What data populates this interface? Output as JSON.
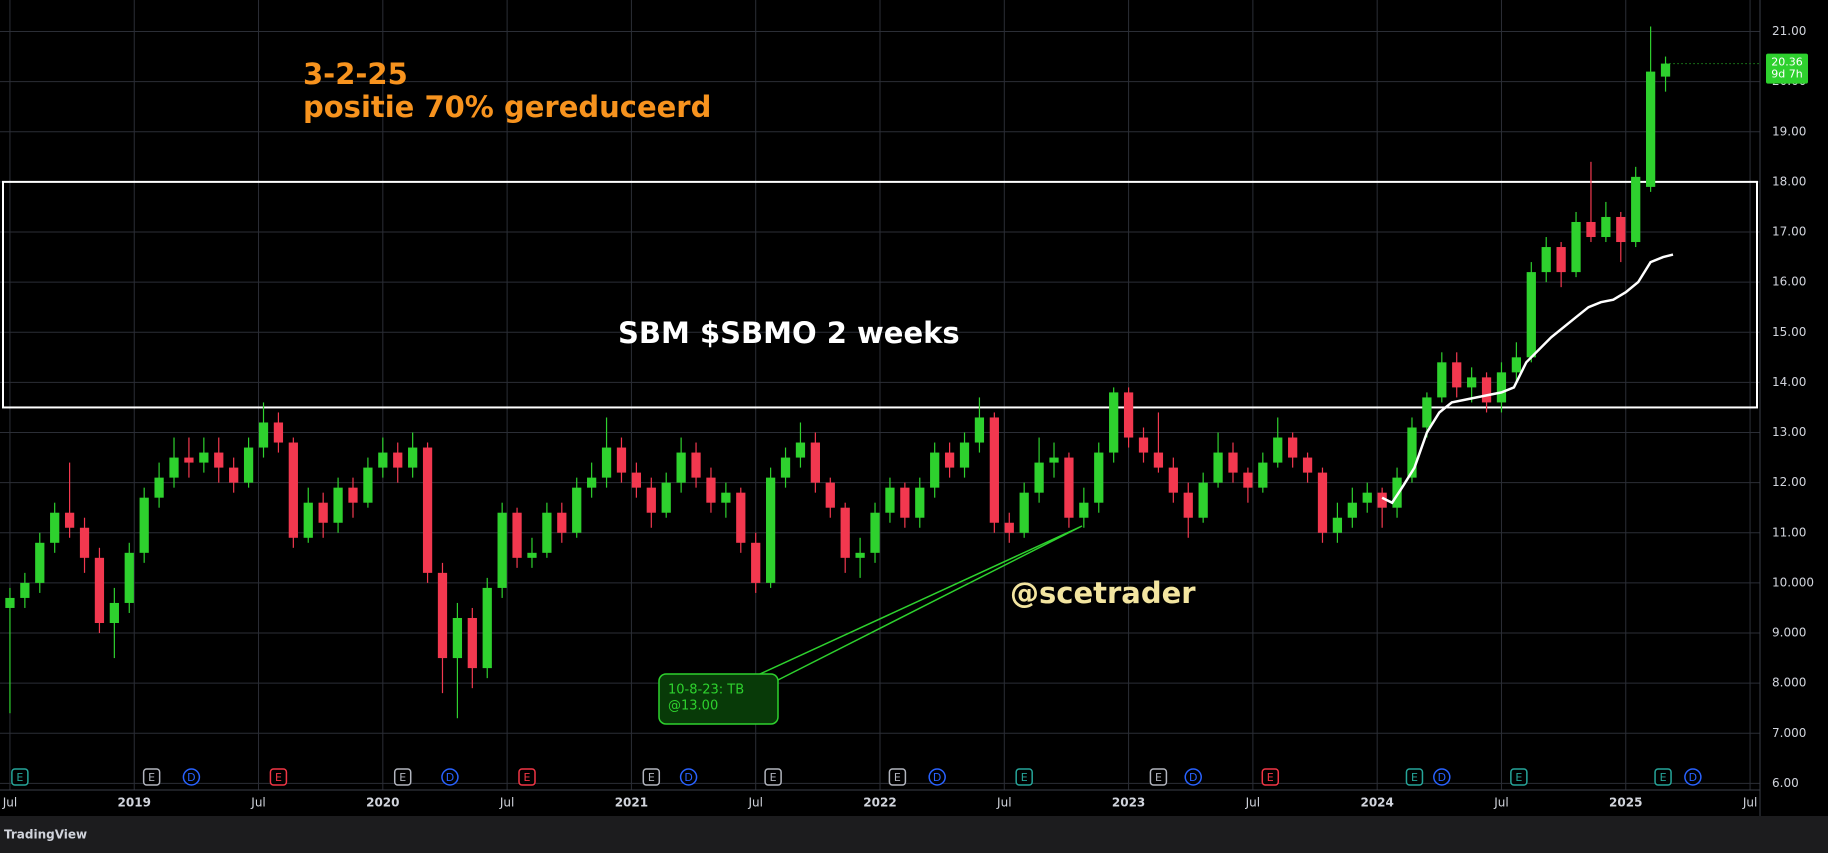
{
  "chart_data": {
    "type": "candlestick",
    "title": "SBM $SBMO 2 weeks",
    "annotations": [
      "3-2-25",
      "positie 70% gereduceerd",
      "@scetrader"
    ],
    "callout": [
      "10-8-23: TB",
      "@13.00"
    ],
    "countdown": "9d 7h",
    "footer": "TradingView",
    "up_color": "#2ed12e",
    "down_color": "#f2384f",
    "grid": true,
    "xlim": [
      2018.46,
      2025.54
    ],
    "xticks": [
      {
        "value": 2018.5,
        "label": "Jul"
      },
      2019,
      {
        "value": 2019.5,
        "label": "Jul"
      },
      2020,
      {
        "value": 2020.5,
        "label": "Jul"
      },
      2021,
      {
        "value": 2021.5,
        "label": "Jul"
      },
      2022,
      {
        "value": 2022.5,
        "label": "Jul"
      },
      2023,
      {
        "value": 2023.5,
        "label": "Jul"
      },
      2024,
      {
        "value": 2024.5,
        "label": "Jul"
      },
      2025,
      {
        "value": 2025.5,
        "label": "Jul"
      }
    ],
    "ylim": [
      6,
      21
    ],
    "yticks": [
      {
        "value": 6,
        "label": "6.00"
      },
      {
        "value": 7,
        "label": "7.000"
      },
      {
        "value": 8,
        "label": "8.000"
      },
      {
        "value": 9,
        "label": "9.000"
      },
      {
        "value": 10,
        "label": "10.000"
      },
      {
        "value": 11,
        "label": "11.00"
      },
      {
        "value": 12,
        "label": "12.00"
      },
      {
        "value": 13,
        "label": "13.00"
      },
      {
        "value": 14,
        "label": "14.00"
      },
      {
        "value": 15,
        "label": "15.00"
      },
      {
        "value": 16,
        "label": "16.00"
      },
      {
        "value": 17,
        "label": "17.00"
      },
      {
        "value": 18,
        "label": "18.00"
      },
      {
        "value": 19,
        "label": "19.00"
      },
      {
        "value": 20,
        "label": "20.00"
      },
      {
        "value": 21,
        "label": "21.00"
      }
    ],
    "zone": {
      "top": 18,
      "bottom": 13.5,
      "color": "#ffffff"
    },
    "candles": [
      {
        "x": 2018.5,
        "o": 9.5,
        "h": 9.9,
        "l": 7.4,
        "c": 9.7
      },
      {
        "x": 2018.56,
        "o": 9.7,
        "h": 10.2,
        "l": 9.5,
        "c": 10.0
      },
      {
        "x": 2018.62,
        "o": 10.0,
        "h": 11.0,
        "l": 9.8,
        "c": 10.8
      },
      {
        "x": 2018.68,
        "o": 10.8,
        "h": 11.6,
        "l": 10.6,
        "c": 11.4
      },
      {
        "x": 2018.74,
        "o": 11.4,
        "h": 12.4,
        "l": 10.9,
        "c": 11.1
      },
      {
        "x": 2018.8,
        "o": 11.1,
        "h": 11.3,
        "l": 10.2,
        "c": 10.5
      },
      {
        "x": 2018.86,
        "o": 10.5,
        "h": 10.7,
        "l": 9.0,
        "c": 9.2
      },
      {
        "x": 2018.92,
        "o": 9.2,
        "h": 9.9,
        "l": 8.5,
        "c": 9.6
      },
      {
        "x": 2018.98,
        "o": 9.6,
        "h": 10.8,
        "l": 9.4,
        "c": 10.6
      },
      {
        "x": 2019.04,
        "o": 10.6,
        "h": 11.9,
        "l": 10.4,
        "c": 11.7
      },
      {
        "x": 2019.1,
        "o": 11.7,
        "h": 12.4,
        "l": 11.5,
        "c": 12.1
      },
      {
        "x": 2019.16,
        "o": 12.1,
        "h": 12.9,
        "l": 11.9,
        "c": 12.5
      },
      {
        "x": 2019.22,
        "o": 12.5,
        "h": 12.9,
        "l": 12.1,
        "c": 12.4
      },
      {
        "x": 2019.28,
        "o": 12.4,
        "h": 12.9,
        "l": 12.2,
        "c": 12.6
      },
      {
        "x": 2019.34,
        "o": 12.6,
        "h": 12.9,
        "l": 12.0,
        "c": 12.3
      },
      {
        "x": 2019.4,
        "o": 12.3,
        "h": 12.5,
        "l": 11.8,
        "c": 12.0
      },
      {
        "x": 2019.46,
        "o": 12.0,
        "h": 12.9,
        "l": 11.9,
        "c": 12.7
      },
      {
        "x": 2019.52,
        "o": 12.7,
        "h": 13.6,
        "l": 12.5,
        "c": 13.2
      },
      {
        "x": 2019.58,
        "o": 13.2,
        "h": 13.4,
        "l": 12.6,
        "c": 12.8
      },
      {
        "x": 2019.64,
        "o": 12.8,
        "h": 12.9,
        "l": 10.7,
        "c": 10.9
      },
      {
        "x": 2019.7,
        "o": 10.9,
        "h": 11.9,
        "l": 10.8,
        "c": 11.6
      },
      {
        "x": 2019.76,
        "o": 11.6,
        "h": 11.8,
        "l": 10.9,
        "c": 11.2
      },
      {
        "x": 2019.82,
        "o": 11.2,
        "h": 12.1,
        "l": 11.0,
        "c": 11.9
      },
      {
        "x": 2019.88,
        "o": 11.9,
        "h": 12.1,
        "l": 11.3,
        "c": 11.6
      },
      {
        "x": 2019.94,
        "o": 11.6,
        "h": 12.5,
        "l": 11.5,
        "c": 12.3
      },
      {
        "x": 2020.0,
        "o": 12.3,
        "h": 12.9,
        "l": 12.1,
        "c": 12.6
      },
      {
        "x": 2020.06,
        "o": 12.6,
        "h": 12.8,
        "l": 12.0,
        "c": 12.3
      },
      {
        "x": 2020.12,
        "o": 12.3,
        "h": 13.0,
        "l": 12.1,
        "c": 12.7
      },
      {
        "x": 2020.18,
        "o": 12.7,
        "h": 12.8,
        "l": 10.0,
        "c": 10.2
      },
      {
        "x": 2020.24,
        "o": 10.2,
        "h": 10.4,
        "l": 7.8,
        "c": 8.5
      },
      {
        "x": 2020.3,
        "o": 8.5,
        "h": 9.6,
        "l": 7.3,
        "c": 9.3
      },
      {
        "x": 2020.36,
        "o": 9.3,
        "h": 9.5,
        "l": 7.9,
        "c": 8.3
      },
      {
        "x": 2020.42,
        "o": 8.3,
        "h": 10.1,
        "l": 8.1,
        "c": 9.9
      },
      {
        "x": 2020.48,
        "o": 9.9,
        "h": 11.6,
        "l": 9.7,
        "c": 11.4
      },
      {
        "x": 2020.54,
        "o": 11.4,
        "h": 11.5,
        "l": 10.3,
        "c": 10.5
      },
      {
        "x": 2020.6,
        "o": 10.5,
        "h": 10.9,
        "l": 10.3,
        "c": 10.6
      },
      {
        "x": 2020.66,
        "o": 10.6,
        "h": 11.6,
        "l": 10.5,
        "c": 11.4
      },
      {
        "x": 2020.72,
        "o": 11.4,
        "h": 11.6,
        "l": 10.8,
        "c": 11.0
      },
      {
        "x": 2020.78,
        "o": 11.0,
        "h": 12.1,
        "l": 10.9,
        "c": 11.9
      },
      {
        "x": 2020.84,
        "o": 11.9,
        "h": 12.4,
        "l": 11.7,
        "c": 12.1
      },
      {
        "x": 2020.9,
        "o": 12.1,
        "h": 13.3,
        "l": 11.9,
        "c": 12.7
      },
      {
        "x": 2020.96,
        "o": 12.7,
        "h": 12.9,
        "l": 12.0,
        "c": 12.2
      },
      {
        "x": 2021.02,
        "o": 12.2,
        "h": 12.4,
        "l": 11.7,
        "c": 11.9
      },
      {
        "x": 2021.08,
        "o": 11.9,
        "h": 12.1,
        "l": 11.1,
        "c": 11.4
      },
      {
        "x": 2021.14,
        "o": 11.4,
        "h": 12.2,
        "l": 11.3,
        "c": 12.0
      },
      {
        "x": 2021.2,
        "o": 12.0,
        "h": 12.9,
        "l": 11.8,
        "c": 12.6
      },
      {
        "x": 2021.26,
        "o": 12.6,
        "h": 12.8,
        "l": 11.9,
        "c": 12.1
      },
      {
        "x": 2021.32,
        "o": 12.1,
        "h": 12.3,
        "l": 11.4,
        "c": 11.6
      },
      {
        "x": 2021.38,
        "o": 11.6,
        "h": 12.0,
        "l": 11.3,
        "c": 11.8
      },
      {
        "x": 2021.44,
        "o": 11.8,
        "h": 11.9,
        "l": 10.6,
        "c": 10.8
      },
      {
        "x": 2021.5,
        "o": 10.8,
        "h": 11.0,
        "l": 9.8,
        "c": 10.0
      },
      {
        "x": 2021.56,
        "o": 10.0,
        "h": 12.3,
        "l": 9.9,
        "c": 12.1
      },
      {
        "x": 2021.62,
        "o": 12.1,
        "h": 12.7,
        "l": 11.9,
        "c": 12.5
      },
      {
        "x": 2021.68,
        "o": 12.5,
        "h": 13.2,
        "l": 12.3,
        "c": 12.8
      },
      {
        "x": 2021.74,
        "o": 12.8,
        "h": 13.0,
        "l": 11.8,
        "c": 12.0
      },
      {
        "x": 2021.8,
        "o": 12.0,
        "h": 12.1,
        "l": 11.3,
        "c": 11.5
      },
      {
        "x": 2021.86,
        "o": 11.5,
        "h": 11.6,
        "l": 10.2,
        "c": 10.5
      },
      {
        "x": 2021.92,
        "o": 10.5,
        "h": 10.9,
        "l": 10.1,
        "c": 10.6
      },
      {
        "x": 2021.98,
        "o": 10.6,
        "h": 11.6,
        "l": 10.4,
        "c": 11.4
      },
      {
        "x": 2022.04,
        "o": 11.4,
        "h": 12.1,
        "l": 11.2,
        "c": 11.9
      },
      {
        "x": 2022.1,
        "o": 11.9,
        "h": 12.0,
        "l": 11.1,
        "c": 11.3
      },
      {
        "x": 2022.16,
        "o": 11.3,
        "h": 12.1,
        "l": 11.1,
        "c": 11.9
      },
      {
        "x": 2022.22,
        "o": 11.9,
        "h": 12.8,
        "l": 11.7,
        "c": 12.6
      },
      {
        "x": 2022.28,
        "o": 12.6,
        "h": 12.8,
        "l": 12.1,
        "c": 12.3
      },
      {
        "x": 2022.34,
        "o": 12.3,
        "h": 13.0,
        "l": 12.1,
        "c": 12.8
      },
      {
        "x": 2022.4,
        "o": 12.8,
        "h": 13.7,
        "l": 12.6,
        "c": 13.3
      },
      {
        "x": 2022.46,
        "o": 13.3,
        "h": 13.4,
        "l": 11.0,
        "c": 11.2
      },
      {
        "x": 2022.52,
        "o": 11.2,
        "h": 11.4,
        "l": 10.8,
        "c": 11.0
      },
      {
        "x": 2022.58,
        "o": 11.0,
        "h": 12.0,
        "l": 10.9,
        "c": 11.8
      },
      {
        "x": 2022.64,
        "o": 11.8,
        "h": 12.9,
        "l": 11.6,
        "c": 12.4
      },
      {
        "x": 2022.7,
        "o": 12.4,
        "h": 12.8,
        "l": 12.1,
        "c": 12.5
      },
      {
        "x": 2022.76,
        "o": 12.5,
        "h": 12.6,
        "l": 11.1,
        "c": 11.3
      },
      {
        "x": 2022.82,
        "o": 11.3,
        "h": 11.9,
        "l": 11.1,
        "c": 11.6
      },
      {
        "x": 2022.88,
        "o": 11.6,
        "h": 12.8,
        "l": 11.4,
        "c": 12.6
      },
      {
        "x": 2022.94,
        "o": 12.6,
        "h": 13.9,
        "l": 12.4,
        "c": 13.8
      },
      {
        "x": 2023.0,
        "o": 13.8,
        "h": 13.9,
        "l": 12.7,
        "c": 12.9
      },
      {
        "x": 2023.06,
        "o": 12.9,
        "h": 13.1,
        "l": 12.4,
        "c": 12.6
      },
      {
        "x": 2023.12,
        "o": 12.6,
        "h": 13.4,
        "l": 12.2,
        "c": 12.3
      },
      {
        "x": 2023.18,
        "o": 12.3,
        "h": 12.5,
        "l": 11.6,
        "c": 11.8
      },
      {
        "x": 2023.24,
        "o": 11.8,
        "h": 12.0,
        "l": 10.9,
        "c": 11.3
      },
      {
        "x": 2023.3,
        "o": 11.3,
        "h": 12.2,
        "l": 11.2,
        "c": 12.0
      },
      {
        "x": 2023.36,
        "o": 12.0,
        "h": 13.0,
        "l": 11.9,
        "c": 12.6
      },
      {
        "x": 2023.42,
        "o": 12.6,
        "h": 12.8,
        "l": 12.0,
        "c": 12.2
      },
      {
        "x": 2023.48,
        "o": 12.2,
        "h": 12.3,
        "l": 11.6,
        "c": 11.9
      },
      {
        "x": 2023.54,
        "o": 11.9,
        "h": 12.6,
        "l": 11.8,
        "c": 12.4
      },
      {
        "x": 2023.6,
        "o": 12.4,
        "h": 13.3,
        "l": 12.3,
        "c": 12.9
      },
      {
        "x": 2023.66,
        "o": 12.9,
        "h": 13.0,
        "l": 12.3,
        "c": 12.5
      },
      {
        "x": 2023.72,
        "o": 12.5,
        "h": 12.6,
        "l": 12.0,
        "c": 12.2
      },
      {
        "x": 2023.78,
        "o": 12.2,
        "h": 12.3,
        "l": 10.8,
        "c": 11.0
      },
      {
        "x": 2023.84,
        "o": 11.0,
        "h": 11.6,
        "l": 10.8,
        "c": 11.3
      },
      {
        "x": 2023.9,
        "o": 11.3,
        "h": 11.9,
        "l": 11.1,
        "c": 11.6
      },
      {
        "x": 2023.96,
        "o": 11.6,
        "h": 12.0,
        "l": 11.4,
        "c": 11.8
      },
      {
        "x": 2024.02,
        "o": 11.8,
        "h": 11.9,
        "l": 11.1,
        "c": 11.5
      },
      {
        "x": 2024.08,
        "o": 11.5,
        "h": 12.3,
        "l": 11.3,
        "c": 12.1
      },
      {
        "x": 2024.14,
        "o": 12.1,
        "h": 13.3,
        "l": 12.0,
        "c": 13.1
      },
      {
        "x": 2024.2,
        "o": 13.1,
        "h": 13.8,
        "l": 12.9,
        "c": 13.7
      },
      {
        "x": 2024.26,
        "o": 13.7,
        "h": 14.6,
        "l": 13.6,
        "c": 14.4
      },
      {
        "x": 2024.32,
        "o": 14.4,
        "h": 14.6,
        "l": 13.7,
        "c": 13.9
      },
      {
        "x": 2024.38,
        "o": 13.9,
        "h": 14.3,
        "l": 13.6,
        "c": 14.1
      },
      {
        "x": 2024.44,
        "o": 14.1,
        "h": 14.2,
        "l": 13.4,
        "c": 13.6
      },
      {
        "x": 2024.5,
        "o": 13.6,
        "h": 14.4,
        "l": 13.4,
        "c": 14.2
      },
      {
        "x": 2024.56,
        "o": 14.2,
        "h": 14.8,
        "l": 14.0,
        "c": 14.5
      },
      {
        "x": 2024.62,
        "o": 14.5,
        "h": 16.4,
        "l": 14.4,
        "c": 16.2
      },
      {
        "x": 2024.68,
        "o": 16.2,
        "h": 16.9,
        "l": 16.0,
        "c": 16.7
      },
      {
        "x": 2024.74,
        "o": 16.7,
        "h": 16.8,
        "l": 15.9,
        "c": 16.2
      },
      {
        "x": 2024.8,
        "o": 16.2,
        "h": 17.4,
        "l": 16.1,
        "c": 17.2
      },
      {
        "x": 2024.86,
        "o": 17.2,
        "h": 18.4,
        "l": 16.8,
        "c": 16.9
      },
      {
        "x": 2024.92,
        "o": 16.9,
        "h": 17.6,
        "l": 16.8,
        "c": 17.3
      },
      {
        "x": 2024.98,
        "o": 17.3,
        "h": 17.4,
        "l": 16.4,
        "c": 16.8
      },
      {
        "x": 2025.04,
        "o": 16.8,
        "h": 18.3,
        "l": 16.7,
        "c": 18.1
      },
      {
        "x": 2025.1,
        "o": 17.9,
        "h": 21.1,
        "l": 17.8,
        "c": 20.2
      },
      {
        "x": 2025.16,
        "o": 20.1,
        "h": 20.5,
        "l": 19.8,
        "c": 20.36
      }
    ],
    "moving_average": {
      "color": "#ffffff",
      "x": [
        2024.02,
        2024.06,
        2024.1,
        2024.15,
        2024.2,
        2024.25,
        2024.3,
        2024.4,
        2024.5,
        2024.55,
        2024.6,
        2024.7,
        2024.8,
        2024.85,
        2024.9,
        2024.95,
        2025.0,
        2025.05,
        2025.1,
        2025.15,
        2025.19
      ],
      "values": [
        11.7,
        11.6,
        11.9,
        12.3,
        13.0,
        13.4,
        13.6,
        13.7,
        13.8,
        13.9,
        14.4,
        14.9,
        15.3,
        15.5,
        15.6,
        15.65,
        15.8,
        16.0,
        16.4,
        16.5,
        16.55
      ]
    },
    "events": [
      {
        "x": 2018.54,
        "label": "E",
        "color": "#26a69a"
      },
      {
        "x": 2019.07,
        "label": "E",
        "color": "#b2b5be"
      },
      {
        "x": 2019.23,
        "label": "D",
        "color": "#2962ff"
      },
      {
        "x": 2019.58,
        "label": "E",
        "color": "#f23645"
      },
      {
        "x": 2020.08,
        "label": "E",
        "color": "#b2b5be"
      },
      {
        "x": 2020.27,
        "label": "D",
        "color": "#2962ff"
      },
      {
        "x": 2020.58,
        "label": "E",
        "color": "#f23645"
      },
      {
        "x": 2021.08,
        "label": "E",
        "color": "#b2b5be"
      },
      {
        "x": 2021.23,
        "label": "D",
        "color": "#2962ff"
      },
      {
        "x": 2021.57,
        "label": "E",
        "color": "#b2b5be"
      },
      {
        "x": 2022.07,
        "label": "E",
        "color": "#b2b5be"
      },
      {
        "x": 2022.23,
        "label": "D",
        "color": "#2962ff"
      },
      {
        "x": 2022.58,
        "label": "E",
        "color": "#26a69a"
      },
      {
        "x": 2023.12,
        "label": "E",
        "color": "#b2b5be"
      },
      {
        "x": 2023.26,
        "label": "D",
        "color": "#2962ff"
      },
      {
        "x": 2023.57,
        "label": "E",
        "color": "#f23645"
      },
      {
        "x": 2024.15,
        "label": "E",
        "color": "#26a69a"
      },
      {
        "x": 2024.26,
        "label": "D",
        "color": "#2962ff"
      },
      {
        "x": 2024.57,
        "label": "E",
        "color": "#26a69a"
      },
      {
        "x": 2025.15,
        "label": "E",
        "color": "#26a69a"
      },
      {
        "x": 2025.27,
        "label": "D",
        "color": "#2962ff"
      }
    ]
  }
}
